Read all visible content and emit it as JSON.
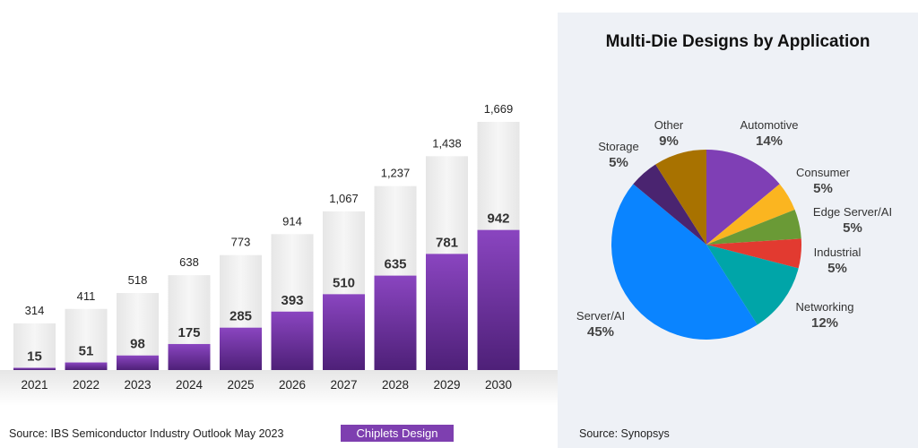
{
  "chart_data": [
    {
      "type": "bar",
      "categories": [
        "2021",
        "2022",
        "2023",
        "2024",
        "2025",
        "2026",
        "2027",
        "2028",
        "2029",
        "2030"
      ],
      "series": [
        {
          "name": "Total",
          "values": [
            314,
            411,
            518,
            638,
            773,
            914,
            1067,
            1237,
            1438,
            1669
          ],
          "labels": [
            "314",
            "411",
            "518",
            "638",
            "773",
            "914",
            "1,067",
            "1,237",
            "1,438",
            "1,669"
          ],
          "color": "#f0f0f0"
        },
        {
          "name": "Chiplets Design",
          "values": [
            15,
            51,
            98,
            175,
            285,
            393,
            510,
            635,
            781,
            942
          ],
          "labels": [
            "15",
            "51",
            "98",
            "175",
            "285",
            "393",
            "510",
            "635",
            "781",
            "942"
          ],
          "color": "#7e3fb0"
        }
      ],
      "ylim": [
        0,
        1800
      ],
      "grid": false,
      "legend": "bottom",
      "source": "Source: IBS Semiconductor Industry Outlook May 2023"
    },
    {
      "type": "pie",
      "title": "Multi-Die Designs by Application",
      "slices": [
        {
          "label": "Automotive",
          "value": 14,
          "pct": "14%",
          "color": "#7f3fb5"
        },
        {
          "label": "Consumer",
          "value": 5,
          "pct": "5%",
          "color": "#fbb520"
        },
        {
          "label": "Edge Server/AI",
          "value": 5,
          "pct": "5%",
          "color": "#6a9a36"
        },
        {
          "label": "Industrial",
          "value": 5,
          "pct": "5%",
          "color": "#e23a30"
        },
        {
          "label": "Networking",
          "value": 12,
          "pct": "12%",
          "color": "#00a5a8"
        },
        {
          "label": "Server/AI",
          "value": 45,
          "pct": "45%",
          "color": "#0a84ff"
        },
        {
          "label": "Storage",
          "value": 5,
          "pct": "5%",
          "color": "#4a2470"
        },
        {
          "label": "Other",
          "value": 9,
          "pct": "9%",
          "color": "#a87200"
        }
      ],
      "source": "Source: Synopsys"
    }
  ]
}
